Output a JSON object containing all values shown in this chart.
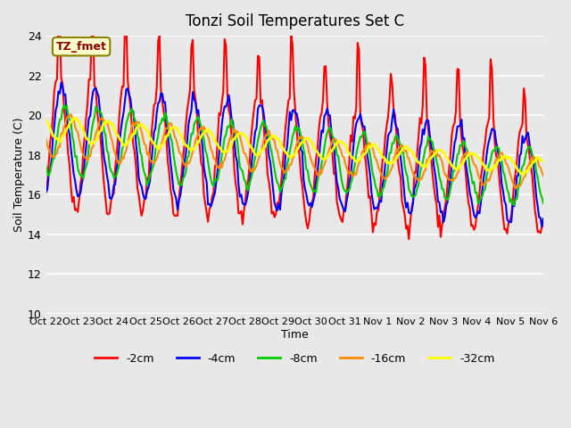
{
  "title": "Tonzi Soil Temperatures Set C",
  "xlabel": "Time",
  "ylabel": "Soil Temperature (C)",
  "ylim": [
    10,
    24
  ],
  "yticks": [
    10,
    12,
    14,
    16,
    18,
    20,
    22,
    24
  ],
  "annotation_text": "TZ_fmet",
  "annotation_color": "#8B0000",
  "annotation_bg": "#FFFFCC",
  "annotation_border": "#8B8000",
  "series_colors": [
    "#FF0000",
    "#0000FF",
    "#00CC00",
    "#FF8C00",
    "#FFFF00"
  ],
  "series_labels": [
    "-2cm",
    "-4cm",
    "-8cm",
    "-16cm",
    "-32cm"
  ],
  "series_linewidths": [
    1.5,
    1.5,
    1.5,
    1.5,
    2.0
  ],
  "bg_color": "#E8E8E8",
  "grid_color": "#FFFFFF",
  "xtick_labels": [
    "Oct 22",
    "Oct 23",
    "Oct 24",
    "Oct 25",
    "Oct 26",
    "Oct 27",
    "Oct 28",
    "Oct 29",
    "Oct 30",
    "Oct 31",
    "Nov 1",
    "Nov 2",
    "Nov 3",
    "Nov 4",
    "Nov 5",
    "Nov 6"
  ],
  "n_days": 15,
  "points_per_day": 24
}
